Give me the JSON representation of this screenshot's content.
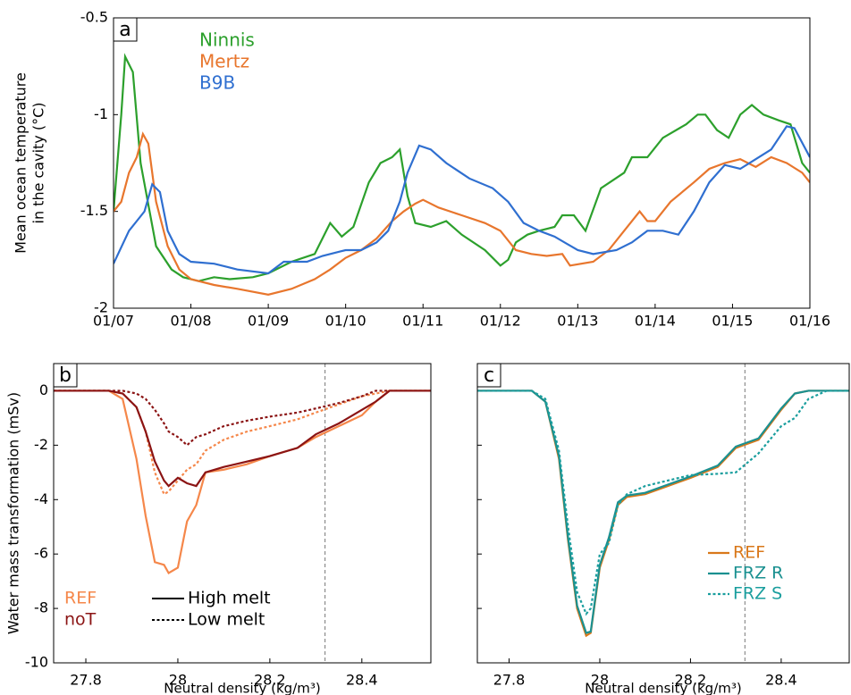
{
  "chart_data": [
    {
      "type": "line",
      "panel": "a",
      "ylabel": [
        "Mean ocean temperature",
        "in the cavity (°C)"
      ],
      "xlim": [
        0,
        9
      ],
      "xticks": [
        {
          "value": 0,
          "label": "01/07"
        },
        {
          "value": 1,
          "label": "01/08"
        },
        {
          "value": 2,
          "label": "01/09"
        },
        {
          "value": 3,
          "label": "01/10"
        },
        {
          "value": 4,
          "label": "01/11"
        },
        {
          "value": 5,
          "label": "01/12"
        },
        {
          "value": 6,
          "label": "01/13"
        },
        {
          "value": 7,
          "label": "01/14"
        },
        {
          "value": 8,
          "label": "01/15"
        },
        {
          "value": 9,
          "label": "01/16"
        }
      ],
      "ylim": [
        -2,
        -0.5
      ],
      "yticks": [
        -2,
        -1.5,
        -1,
        -0.5
      ],
      "series": [
        {
          "name": "Ninnis",
          "color": "#2ca02c",
          "x": [
            0,
            0.1,
            0.15,
            0.25,
            0.35,
            0.55,
            0.75,
            0.9,
            1.1,
            1.3,
            1.5,
            1.8,
            2.0,
            2.3,
            2.6,
            2.8,
            2.95,
            3.1,
            3.3,
            3.45,
            3.6,
            3.7,
            3.8,
            3.9,
            4.1,
            4.3,
            4.5,
            4.8,
            5.0,
            5.1,
            5.2,
            5.35,
            5.5,
            5.7,
            5.8,
            5.95,
            6.1,
            6.3,
            6.6,
            6.7,
            6.9,
            7.1,
            7.4,
            7.55,
            7.65,
            7.8,
            7.95,
            8.1,
            8.25,
            8.4,
            8.6,
            8.75,
            8.9,
            9.0
          ],
          "values": [
            -1.5,
            -1.0,
            -0.7,
            -0.78,
            -1.25,
            -1.68,
            -1.8,
            -1.84,
            -1.86,
            -1.84,
            -1.85,
            -1.84,
            -1.82,
            -1.76,
            -1.72,
            -1.56,
            -1.63,
            -1.58,
            -1.35,
            -1.25,
            -1.22,
            -1.18,
            -1.42,
            -1.56,
            -1.58,
            -1.55,
            -1.62,
            -1.7,
            -1.78,
            -1.75,
            -1.66,
            -1.62,
            -1.6,
            -1.58,
            -1.52,
            -1.52,
            -1.6,
            -1.38,
            -1.3,
            -1.22,
            -1.22,
            -1.12,
            -1.05,
            -1.0,
            -1.0,
            -1.08,
            -1.12,
            -1.0,
            -0.95,
            -1.0,
            -1.03,
            -1.05,
            -1.25,
            -1.3
          ]
        },
        {
          "name": "Mertz",
          "color": "#e8762d",
          "x": [
            0,
            0.1,
            0.2,
            0.3,
            0.38,
            0.45,
            0.55,
            0.7,
            0.85,
            1.0,
            1.3,
            1.6,
            2.0,
            2.3,
            2.6,
            2.8,
            3.0,
            3.2,
            3.4,
            3.6,
            3.75,
            3.9,
            4.0,
            4.2,
            4.5,
            4.8,
            5.0,
            5.2,
            5.4,
            5.6,
            5.8,
            5.9,
            6.2,
            6.4,
            6.6,
            6.8,
            6.9,
            7.0,
            7.2,
            7.5,
            7.7,
            7.9,
            8.1,
            8.3,
            8.5,
            8.7,
            8.9,
            9.0
          ],
          "values": [
            -1.5,
            -1.45,
            -1.3,
            -1.22,
            -1.1,
            -1.15,
            -1.45,
            -1.68,
            -1.8,
            -1.85,
            -1.88,
            -1.9,
            -1.93,
            -1.9,
            -1.85,
            -1.8,
            -1.74,
            -1.7,
            -1.64,
            -1.55,
            -1.5,
            -1.46,
            -1.44,
            -1.48,
            -1.52,
            -1.56,
            -1.6,
            -1.7,
            -1.72,
            -1.73,
            -1.72,
            -1.78,
            -1.76,
            -1.7,
            -1.6,
            -1.5,
            -1.55,
            -1.55,
            -1.45,
            -1.35,
            -1.28,
            -1.25,
            -1.23,
            -1.27,
            -1.22,
            -1.25,
            -1.3,
            -1.35
          ]
        },
        {
          "name": "B9B",
          "color": "#2f6fd0",
          "x": [
            0,
            0.2,
            0.3,
            0.4,
            0.5,
            0.6,
            0.7,
            0.85,
            1.0,
            1.3,
            1.6,
            2.0,
            2.2,
            2.5,
            2.7,
            3.0,
            3.2,
            3.4,
            3.55,
            3.7,
            3.8,
            3.95,
            4.1,
            4.3,
            4.6,
            4.9,
            5.1,
            5.3,
            5.5,
            5.7,
            6.0,
            6.2,
            6.5,
            6.7,
            6.9,
            7.1,
            7.3,
            7.5,
            7.7,
            7.9,
            8.1,
            8.3,
            8.5,
            8.7,
            8.8,
            9.0
          ],
          "values": [
            -1.77,
            -1.6,
            -1.55,
            -1.5,
            -1.36,
            -1.4,
            -1.6,
            -1.72,
            -1.76,
            -1.77,
            -1.8,
            -1.82,
            -1.76,
            -1.76,
            -1.73,
            -1.7,
            -1.7,
            -1.66,
            -1.6,
            -1.45,
            -1.3,
            -1.16,
            -1.18,
            -1.25,
            -1.33,
            -1.38,
            -1.45,
            -1.56,
            -1.6,
            -1.63,
            -1.7,
            -1.72,
            -1.7,
            -1.66,
            -1.6,
            -1.6,
            -1.62,
            -1.5,
            -1.35,
            -1.26,
            -1.28,
            -1.23,
            -1.18,
            -1.06,
            -1.07,
            -1.22
          ]
        }
      ]
    },
    {
      "type": "line",
      "panel": "b",
      "ylabel": "Water mass transformation (mSv)",
      "xlabel": "Neutral density (kg/m³)",
      "xlim": [
        27.73,
        28.55
      ],
      "xticks": [
        27.8,
        28,
        28.2,
        28.4
      ],
      "ylim": [
        -10,
        1
      ],
      "yticks": [
        -10,
        -8,
        -6,
        -4,
        -2,
        0
      ],
      "show_ytick_labels": true,
      "vline": 28.32,
      "x": [
        27.73,
        27.8,
        27.85,
        27.88,
        27.91,
        27.93,
        27.95,
        27.97,
        27.98,
        28,
        28.02,
        28.04,
        28.06,
        28.1,
        28.15,
        28.2,
        28.26,
        28.3,
        28.35,
        28.4,
        28.43,
        28.46,
        28.5,
        28.55
      ],
      "line_styles": [
        {
          "label": "High melt",
          "dash": "solid"
        },
        {
          "label": "Low melt",
          "dash": "dotted"
        }
      ],
      "series": [
        {
          "name": "REF",
          "color": "#f5874a",
          "lines": [
            {
              "values": [
                0,
                0,
                0,
                -0.3,
                -2.5,
                -4.6,
                -6.3,
                -6.4,
                -6.7,
                -6.5,
                -4.8,
                -4.2,
                -3.0,
                -2.9,
                -2.7,
                -2.4,
                -2.1,
                -1.7,
                -1.3,
                -0.9,
                -0.4,
                0,
                0,
                0
              ]
            },
            {
              "values": [
                0,
                0,
                0,
                -0.1,
                -0.6,
                -1.5,
                -3.0,
                -3.8,
                -3.7,
                -3.3,
                -2.9,
                -2.7,
                -2.2,
                -1.8,
                -1.5,
                -1.3,
                -1.05,
                -0.8,
                -0.5,
                -0.2,
                -0.1,
                0,
                0,
                0
              ]
            }
          ]
        },
        {
          "name": "noT",
          "color": "#8b1414",
          "lines": [
            {
              "values": [
                0,
                0,
                0,
                -0.1,
                -0.6,
                -1.5,
                -2.6,
                -3.3,
                -3.5,
                -3.2,
                -3.4,
                -3.5,
                -3.0,
                -2.8,
                -2.6,
                -2.4,
                -2.1,
                -1.6,
                -1.2,
                -0.7,
                -0.4,
                0,
                0,
                0
              ]
            },
            {
              "values": [
                0,
                0,
                0,
                0,
                -0.1,
                -0.3,
                -0.7,
                -1.2,
                -1.5,
                -1.7,
                -2.0,
                -1.7,
                -1.6,
                -1.3,
                -1.1,
                -0.95,
                -0.8,
                -0.65,
                -0.45,
                -0.2,
                0,
                0,
                0,
                0
              ]
            }
          ]
        }
      ]
    },
    {
      "type": "line",
      "panel": "c",
      "xlabel": "Neutral density (kg/m³)",
      "xlim": [
        27.73,
        28.55
      ],
      "xticks": [
        27.8,
        28,
        28.2,
        28.4
      ],
      "ylim": [
        -10,
        1
      ],
      "yticks": [
        -10,
        -8,
        -6,
        -4,
        -2,
        0
      ],
      "show_ytick_labels": false,
      "vline": 28.32,
      "x": [
        27.73,
        27.8,
        27.85,
        27.88,
        27.91,
        27.93,
        27.95,
        27.97,
        27.98,
        28,
        28.02,
        28.04,
        28.06,
        28.1,
        28.15,
        28.2,
        28.26,
        28.3,
        28.35,
        28.4,
        28.43,
        28.46,
        28.5,
        28.55
      ],
      "series": [
        {
          "name": "REF",
          "color": "#d9781a",
          "dash": "solid",
          "values": [
            0,
            0,
            0,
            -0.4,
            -2.5,
            -5.5,
            -8.0,
            -9.0,
            -8.9,
            -6.5,
            -5.5,
            -4.2,
            -3.9,
            -3.8,
            -3.5,
            -3.2,
            -2.8,
            -2.1,
            -1.8,
            -0.7,
            -0.1,
            0,
            0,
            0
          ]
        },
        {
          "name": "FRZ R",
          "color": "#1a9090",
          "dash": "solid",
          "values": [
            0,
            0,
            0,
            -0.4,
            -2.4,
            -5.4,
            -7.9,
            -8.9,
            -8.85,
            -6.4,
            -5.4,
            -4.1,
            -3.85,
            -3.75,
            -3.45,
            -3.15,
            -2.75,
            -2.05,
            -1.75,
            -0.65,
            -0.1,
            0,
            0,
            0
          ]
        },
        {
          "name": "FRZ S",
          "color": "#1a9e9e",
          "dash": "dotted",
          "values": [
            0,
            0,
            0,
            -0.3,
            -2.2,
            -5.0,
            -7.4,
            -8.2,
            -8.0,
            -6.0,
            -5.6,
            -4.2,
            -3.8,
            -3.5,
            -3.3,
            -3.1,
            -3.05,
            -3.0,
            -2.3,
            -1.3,
            -1.0,
            -0.3,
            0,
            0
          ]
        }
      ]
    }
  ]
}
